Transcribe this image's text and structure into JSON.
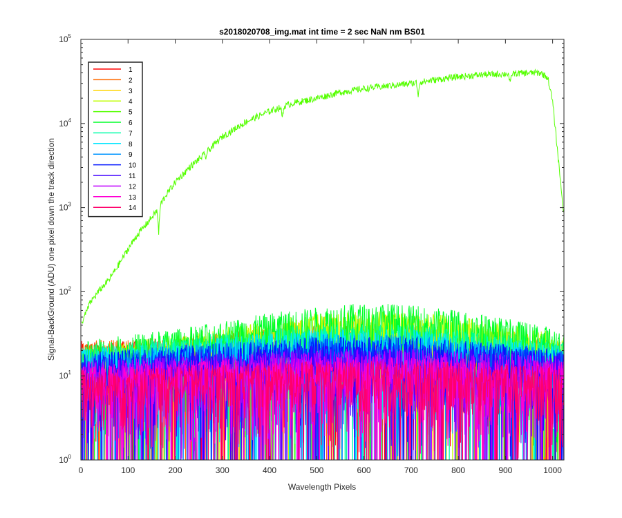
{
  "chart_data": {
    "type": "line",
    "title": "s2018020708_img.mat int time = 2 sec  NaN nm BS01",
    "xlabel": "Wavelength Pixels",
    "ylabel": "Signal-BackGround (ADU) one pixel down the track direction",
    "xlim": [
      0,
      1024
    ],
    "ylim": [
      1,
      100000
    ],
    "yscale": "log",
    "grid": false,
    "legend_location": "upper-left",
    "x_ticks": [
      "0",
      "100",
      "200",
      "300",
      "400",
      "500",
      "600",
      "700",
      "800",
      "900",
      "1000"
    ],
    "x_tick_values": [
      0,
      100,
      200,
      300,
      400,
      500,
      600,
      700,
      800,
      900,
      1000
    ],
    "y_ticks": [
      {
        "value": 1,
        "base": "10",
        "exp": "0"
      },
      {
        "value": 10,
        "base": "10",
        "exp": "1"
      },
      {
        "value": 100,
        "base": "10",
        "exp": "2"
      },
      {
        "value": 1000,
        "base": "10",
        "exp": "3"
      },
      {
        "value": 10000,
        "base": "10",
        "exp": "4"
      },
      {
        "value": 100000,
        "base": "10",
        "exp": "5"
      }
    ],
    "series": [
      {
        "name": "1",
        "color": "#ff0000",
        "kind": "noise",
        "envelope": [
          [
            0,
            25
          ],
          [
            200,
            25
          ],
          [
            500,
            30
          ],
          [
            700,
            28
          ],
          [
            1024,
            20
          ]
        ]
      },
      {
        "name": "2",
        "color": "#ff6a00",
        "kind": "noise",
        "envelope": [
          [
            0,
            25
          ],
          [
            200,
            28
          ],
          [
            500,
            40
          ],
          [
            700,
            38
          ],
          [
            1024,
            25
          ]
        ]
      },
      {
        "name": "3",
        "color": "#ffd400",
        "kind": "noise",
        "envelope": [
          [
            0,
            20
          ],
          [
            200,
            25
          ],
          [
            500,
            50
          ],
          [
            650,
            55
          ],
          [
            800,
            45
          ],
          [
            1024,
            25
          ]
        ]
      },
      {
        "name": "4",
        "color": "#bfff00",
        "kind": "noise",
        "envelope": [
          [
            0,
            20
          ],
          [
            200,
            30
          ],
          [
            500,
            55
          ],
          [
            650,
            60
          ],
          [
            800,
            50
          ],
          [
            1024,
            30
          ]
        ]
      },
      {
        "name": "5",
        "color": "#55ff00",
        "kind": "spectrum",
        "points": [
          [
            0,
            40
          ],
          [
            20,
            75
          ],
          [
            40,
            105
          ],
          [
            60,
            140
          ],
          [
            80,
            210
          ],
          [
            100,
            320
          ],
          [
            120,
            480
          ],
          [
            140,
            650
          ],
          [
            160,
            900
          ],
          [
            180,
            1400
          ],
          [
            200,
            2000
          ],
          [
            230,
            3000
          ],
          [
            260,
            4200
          ],
          [
            300,
            7000
          ],
          [
            350,
            10500
          ],
          [
            400,
            14000
          ],
          [
            450,
            17500
          ],
          [
            500,
            20000
          ],
          [
            550,
            23500
          ],
          [
            600,
            26000
          ],
          [
            650,
            28000
          ],
          [
            700,
            30000
          ],
          [
            750,
            33000
          ],
          [
            800,
            36000
          ],
          [
            850,
            38000
          ],
          [
            900,
            39000
          ],
          [
            950,
            40000
          ],
          [
            975,
            40000
          ],
          [
            990,
            35000
          ],
          [
            1000,
            18000
          ],
          [
            1010,
            5000
          ],
          [
            1024,
            800
          ]
        ],
        "dips": [
          [
            130,
            600
          ],
          [
            165,
            500
          ],
          [
            265,
            4000
          ],
          [
            427,
            12000
          ],
          [
            715,
            22000
          ],
          [
            910,
            29000
          ]
        ]
      },
      {
        "name": "6",
        "color": "#00ff2a",
        "kind": "noise",
        "envelope": [
          [
            0,
            25
          ],
          [
            200,
            35
          ],
          [
            400,
            55
          ],
          [
            550,
            70
          ],
          [
            650,
            72
          ],
          [
            800,
            60
          ],
          [
            1024,
            35
          ]
        ]
      },
      {
        "name": "7",
        "color": "#00ffaa",
        "kind": "noise",
        "envelope": [
          [
            0,
            22
          ],
          [
            200,
            28
          ],
          [
            500,
            40
          ],
          [
            700,
            40
          ],
          [
            1024,
            25
          ]
        ]
      },
      {
        "name": "8",
        "color": "#00e5ff",
        "kind": "noise",
        "envelope": [
          [
            0,
            20
          ],
          [
            200,
            25
          ],
          [
            500,
            35
          ],
          [
            700,
            35
          ],
          [
            1024,
            22
          ]
        ]
      },
      {
        "name": "9",
        "color": "#0095ff",
        "kind": "noise",
        "envelope": [
          [
            0,
            18
          ],
          [
            200,
            22
          ],
          [
            500,
            30
          ],
          [
            700,
            30
          ],
          [
            1024,
            20
          ]
        ]
      },
      {
        "name": "10",
        "color": "#0015ff",
        "kind": "noise",
        "envelope": [
          [
            0,
            18
          ],
          [
            200,
            22
          ],
          [
            500,
            28
          ],
          [
            700,
            28
          ],
          [
            1024,
            20
          ]
        ]
      },
      {
        "name": "11",
        "color": "#4000ff",
        "kind": "noise",
        "envelope": [
          [
            0,
            15
          ],
          [
            200,
            18
          ],
          [
            500,
            22
          ],
          [
            700,
            22
          ],
          [
            1024,
            18
          ]
        ]
      },
      {
        "name": "12",
        "color": "#bf00ff",
        "kind": "noise",
        "envelope": [
          [
            0,
            14
          ],
          [
            200,
            16
          ],
          [
            500,
            20
          ],
          [
            700,
            20
          ],
          [
            1024,
            16
          ]
        ]
      },
      {
        "name": "13",
        "color": "#ff00d4",
        "kind": "noise",
        "envelope": [
          [
            0,
            12
          ],
          [
            200,
            14
          ],
          [
            500,
            16
          ],
          [
            700,
            16
          ],
          [
            1024,
            14
          ]
        ]
      },
      {
        "name": "14",
        "color": "#ff006a",
        "kind": "noise",
        "envelope": [
          [
            0,
            11
          ],
          [
            200,
            12
          ],
          [
            500,
            14
          ],
          [
            700,
            14
          ],
          [
            1024,
            12
          ]
        ]
      }
    ]
  }
}
